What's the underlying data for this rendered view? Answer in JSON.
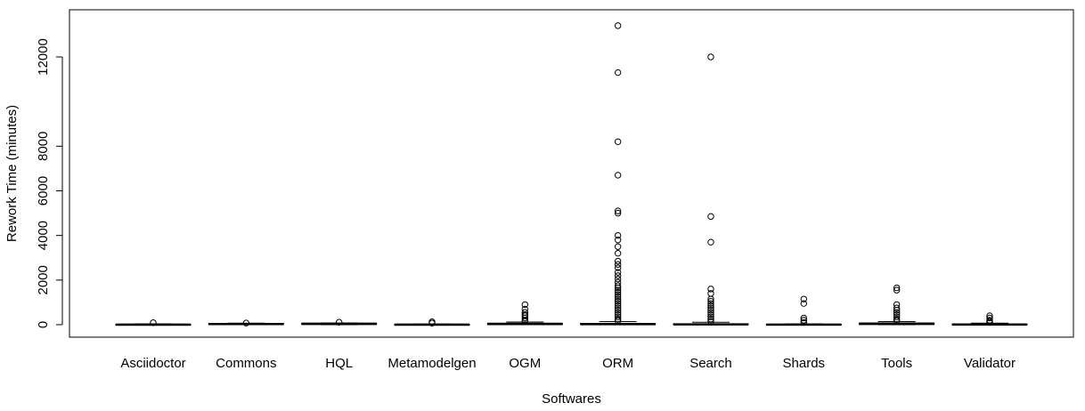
{
  "chart_data": {
    "type": "boxplot",
    "title": "",
    "xlabel": "Softwares",
    "ylabel": "Rework Time (minutes)",
    "yticks": [
      0,
      2000,
      4000,
      6000,
      8000,
      12000
    ],
    "ylim": [
      -500,
      13800
    ],
    "grid": false,
    "categories": [
      "Asciidoctor",
      "Commons",
      "HQL",
      "Metamodelgen",
      "OGM",
      "ORM",
      "Search",
      "Shards",
      "Tools",
      "Validator"
    ],
    "series": [
      {
        "category": "Asciidoctor",
        "box": {
          "min": 0,
          "q1": 0,
          "median": 5,
          "q3": 15,
          "max": 40
        },
        "outliers": [
          90
        ]
      },
      {
        "category": "Commons",
        "box": {
          "min": 0,
          "q1": 5,
          "median": 30,
          "q3": 60,
          "max": 70
        },
        "outliers": [
          75
        ]
      },
      {
        "category": "HQL",
        "box": {
          "min": 0,
          "q1": 10,
          "median": 40,
          "q3": 70,
          "max": 80
        },
        "outliers": [
          110
        ]
      },
      {
        "category": "Metamodelgen",
        "box": {
          "min": 0,
          "q1": 0,
          "median": 5,
          "q3": 15,
          "max": 30
        },
        "outliers": [
          70,
          130
        ]
      },
      {
        "category": "OGM",
        "box": {
          "min": 0,
          "q1": 5,
          "median": 30,
          "q3": 70,
          "max": 120
        },
        "outliers": [
          150,
          200,
          300,
          400,
          450,
          550,
          700,
          900
        ]
      },
      {
        "category": "ORM",
        "box": {
          "min": 0,
          "q1": 5,
          "median": 25,
          "q3": 60,
          "max": 140
        },
        "outliers": [
          180,
          250,
          350,
          450,
          550,
          650,
          750,
          850,
          950,
          1050,
          1150,
          1250,
          1350,
          1450,
          1550,
          1650,
          1750,
          1900,
          2050,
          2200,
          2350,
          2550,
          2700,
          2850,
          3200,
          3500,
          3800,
          4000,
          5000,
          5100,
          6700,
          8200,
          11300,
          13400
        ]
      },
      {
        "category": "Search",
        "box": {
          "min": 0,
          "q1": 5,
          "median": 15,
          "q3": 40,
          "max": 110
        },
        "outliers": [
          150,
          250,
          350,
          450,
          550,
          650,
          750,
          850,
          950,
          1050,
          1150,
          1400,
          1600,
          3700,
          4850,
          12000
        ]
      },
      {
        "category": "Shards",
        "box": {
          "min": 0,
          "q1": 0,
          "median": 5,
          "q3": 20,
          "max": 40
        },
        "outliers": [
          100,
          200,
          300,
          950,
          1150
        ]
      },
      {
        "category": "Tools",
        "box": {
          "min": 0,
          "q1": 10,
          "median": 40,
          "q3": 80,
          "max": 140
        },
        "outliers": [
          180,
          250,
          350,
          450,
          550,
          650,
          750,
          900,
          1550,
          1650
        ]
      },
      {
        "category": "Validator",
        "box": {
          "min": 0,
          "q1": 0,
          "median": 10,
          "q3": 30,
          "max": 70
        },
        "outliers": [
          100,
          150,
          200,
          300,
          400
        ]
      }
    ]
  }
}
